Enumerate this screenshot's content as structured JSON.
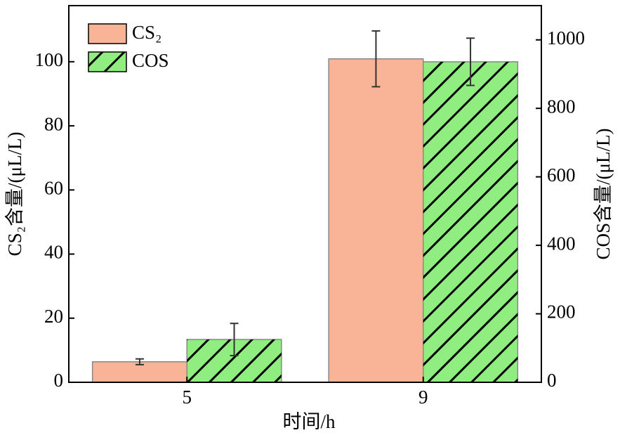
{
  "chart_data": {
    "type": "bar",
    "xlabel": "时间/h",
    "ylabel": "CS₂含量/(μL/L)",
    "y2label": "COS含量/(μL/L)",
    "categories": [
      "5",
      "9"
    ],
    "series": [
      {
        "name": "CS₂",
        "color": "#f9b497",
        "values": [
          6.4,
          100.9
        ],
        "errors": [
          0.9,
          8.7
        ],
        "axis": "y"
      },
      {
        "name": "COS",
        "color": "#90ee80",
        "hatch": "/",
        "values": [
          125,
          936
        ],
        "errors": [
          47,
          69
        ],
        "axis": "y2"
      }
    ],
    "ylim": [
      0,
      117.5
    ],
    "yticks": [
      0,
      20,
      40,
      60,
      80,
      100
    ],
    "y2lim": [
      0,
      1100
    ],
    "y2ticks": [
      0,
      200,
      400,
      600,
      800,
      1000
    ],
    "legend": "upper left"
  }
}
